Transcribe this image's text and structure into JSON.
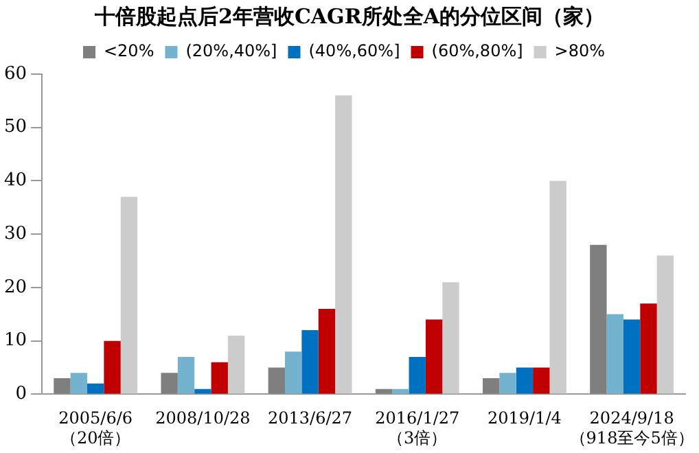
{
  "chart_data": {
    "type": "bar",
    "title": "十倍股起点后2年营收CAGR所处全A的分位区间（家）",
    "categories": [
      "2005/6/6\n（20倍）",
      "2008/10/28",
      "2013/6/27",
      "2016/1/27\n（3倍）",
      "2019/1/4",
      "2024/9/18\n（918至今5倍）"
    ],
    "series": [
      {
        "name": "<20%",
        "color": "#7f7f7f",
        "values": [
          3,
          4,
          5,
          1,
          3,
          28
        ]
      },
      {
        "name": "(20%,40%]",
        "color": "#74b3cf",
        "values": [
          4,
          7,
          8,
          1,
          4,
          15
        ]
      },
      {
        "name": "(40%,60%]",
        "color": "#0070c0",
        "values": [
          2,
          1,
          12,
          7,
          5,
          14
        ]
      },
      {
        "name": "(60%,80%]",
        "color": "#c00000",
        "values": [
          10,
          6,
          16,
          14,
          5,
          17
        ]
      },
      {
        "name": ">80%",
        "color": "#cccccc",
        "values": [
          37,
          11,
          56,
          21,
          40,
          26
        ]
      }
    ],
    "ylim": [
      0,
      60
    ],
    "yticks": [
      0,
      10,
      20,
      30,
      40,
      50,
      60
    ],
    "grid": false,
    "legend": "top"
  }
}
